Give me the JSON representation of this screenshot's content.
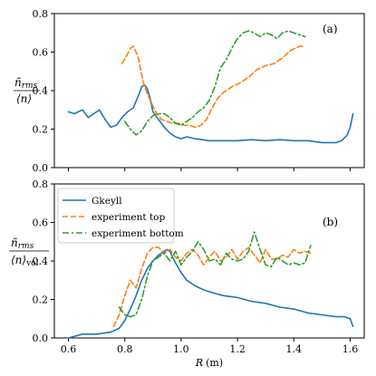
{
  "chart_data": [
    {
      "type": "line",
      "panel_label": "(a)",
      "ylabel_num": "ñ",
      "ylabel_num_sub": "rms",
      "ylabel_den": "⟨n⟩",
      "xlabel": "",
      "xlim": [
        0.55,
        1.65
      ],
      "ylim": [
        0.0,
        0.8
      ],
      "xticks": [
        0.6,
        0.8,
        1.0,
        1.2,
        1.4,
        1.6
      ],
      "yticks": [
        0.0,
        0.2,
        0.4,
        0.6,
        0.8
      ],
      "ytick_labels": [
        "0.0",
        "0.2",
        "0.4",
        "0.6",
        "0.8"
      ],
      "legend": false,
      "series": [
        {
          "color": "#1f77b4",
          "dash": "solid",
          "x": [
            0.6,
            0.62,
            0.65,
            0.67,
            0.69,
            0.71,
            0.73,
            0.75,
            0.77,
            0.79,
            0.81,
            0.83,
            0.85,
            0.86,
            0.87,
            0.88,
            0.89,
            0.9,
            0.92,
            0.94,
            0.96,
            0.98,
            1.0,
            1.02,
            1.05,
            1.1,
            1.15,
            1.2,
            1.25,
            1.3,
            1.35,
            1.4,
            1.45,
            1.5,
            1.55,
            1.57,
            1.59,
            1.6,
            1.61
          ],
          "y": [
            0.29,
            0.28,
            0.3,
            0.26,
            0.28,
            0.3,
            0.25,
            0.21,
            0.22,
            0.26,
            0.29,
            0.31,
            0.38,
            0.42,
            0.43,
            0.41,
            0.36,
            0.29,
            0.25,
            0.21,
            0.18,
            0.16,
            0.15,
            0.16,
            0.15,
            0.14,
            0.14,
            0.14,
            0.145,
            0.14,
            0.145,
            0.14,
            0.14,
            0.13,
            0.13,
            0.14,
            0.17,
            0.21,
            0.28
          ]
        },
        {
          "color": "#ff7f0e",
          "dash": "dashed",
          "x": [
            0.79,
            0.81,
            0.82,
            0.83,
            0.84,
            0.85,
            0.86,
            0.87,
            0.89,
            0.91,
            0.93,
            0.95,
            0.97,
            0.99,
            1.01,
            1.03,
            1.05,
            1.07,
            1.09,
            1.11,
            1.13,
            1.15,
            1.18,
            1.21,
            1.24,
            1.27,
            1.3,
            1.33,
            1.36,
            1.39,
            1.42,
            1.44
          ],
          "y": [
            0.54,
            0.59,
            0.62,
            0.63,
            0.6,
            0.56,
            0.48,
            0.42,
            0.35,
            0.29,
            0.25,
            0.24,
            0.23,
            0.23,
            0.22,
            0.22,
            0.21,
            0.22,
            0.25,
            0.31,
            0.36,
            0.39,
            0.42,
            0.44,
            0.47,
            0.51,
            0.53,
            0.54,
            0.57,
            0.61,
            0.63,
            0.63
          ]
        },
        {
          "color": "#2ca02c",
          "dash": "dashdot",
          "x": [
            0.8,
            0.82,
            0.84,
            0.86,
            0.88,
            0.9,
            0.92,
            0.94,
            0.96,
            0.98,
            1.0,
            1.02,
            1.04,
            1.06,
            1.08,
            1.1,
            1.12,
            1.14,
            1.16,
            1.18,
            1.2,
            1.22,
            1.24,
            1.26,
            1.28,
            1.3,
            1.32,
            1.34,
            1.36,
            1.38,
            1.4,
            1.42,
            1.44
          ],
          "y": [
            0.24,
            0.2,
            0.17,
            0.19,
            0.24,
            0.27,
            0.28,
            0.28,
            0.26,
            0.23,
            0.22,
            0.24,
            0.26,
            0.29,
            0.31,
            0.35,
            0.42,
            0.52,
            0.56,
            0.62,
            0.67,
            0.7,
            0.71,
            0.7,
            0.68,
            0.7,
            0.69,
            0.67,
            0.7,
            0.71,
            0.7,
            0.69,
            0.68
          ]
        }
      ]
    },
    {
      "type": "line",
      "panel_label": "(b)",
      "ylabel_num": "ñ",
      "ylabel_num_sub": "rms",
      "ylabel_den": "⟨n⟩",
      "ylabel_den_sub": "vol",
      "xlabel": "R",
      "xlabel_unit": "(m)",
      "xlim": [
        0.55,
        1.65
      ],
      "ylim": [
        0.0,
        0.8
      ],
      "xticks": [
        0.6,
        0.8,
        1.0,
        1.2,
        1.4,
        1.6
      ],
      "xtick_labels": [
        "0.6",
        "0.8",
        "1.0",
        "1.2",
        "1.4",
        "1.6"
      ],
      "yticks": [
        0.0,
        0.2,
        0.4,
        0.6,
        0.8
      ],
      "ytick_labels": [
        "0.0",
        "0.2",
        "0.4",
        "0.6",
        "0.8"
      ],
      "legend": true,
      "legend_placement": "top-left",
      "series": [
        {
          "name": "Gkeyll",
          "color": "#1f77b4",
          "dash": "solid",
          "x": [
            0.6,
            0.65,
            0.7,
            0.75,
            0.78,
            0.8,
            0.82,
            0.84,
            0.86,
            0.88,
            0.9,
            0.92,
            0.94,
            0.95,
            0.96,
            0.97,
            0.98,
            1.0,
            1.02,
            1.05,
            1.08,
            1.1,
            1.15,
            1.2,
            1.25,
            1.3,
            1.35,
            1.4,
            1.45,
            1.5,
            1.55,
            1.58,
            1.6,
            1.61
          ],
          "y": [
            0.0,
            0.02,
            0.02,
            0.03,
            0.05,
            0.09,
            0.15,
            0.22,
            0.3,
            0.36,
            0.4,
            0.43,
            0.45,
            0.46,
            0.45,
            0.42,
            0.39,
            0.34,
            0.3,
            0.27,
            0.25,
            0.24,
            0.22,
            0.21,
            0.19,
            0.18,
            0.16,
            0.15,
            0.13,
            0.12,
            0.11,
            0.11,
            0.1,
            0.06
          ]
        },
        {
          "name": "experiment top",
          "color": "#ff7f0e",
          "dash": "dashed",
          "x": [
            0.76,
            0.78,
            0.8,
            0.82,
            0.84,
            0.86,
            0.88,
            0.9,
            0.92,
            0.94,
            0.96,
            0.98,
            1.0,
            1.02,
            1.04,
            1.06,
            1.08,
            1.1,
            1.12,
            1.14,
            1.16,
            1.18,
            1.2,
            1.22,
            1.24,
            1.26,
            1.28,
            1.3,
            1.32,
            1.34,
            1.36,
            1.38,
            1.4,
            1.42,
            1.44,
            1.46
          ],
          "y": [
            0.06,
            0.12,
            0.22,
            0.3,
            0.26,
            0.36,
            0.44,
            0.47,
            0.47,
            0.44,
            0.46,
            0.42,
            0.4,
            0.44,
            0.46,
            0.43,
            0.38,
            0.42,
            0.45,
            0.4,
            0.42,
            0.46,
            0.41,
            0.45,
            0.47,
            0.43,
            0.39,
            0.46,
            0.41,
            0.41,
            0.43,
            0.42,
            0.46,
            0.44,
            0.45,
            0.44
          ]
        },
        {
          "name": "experiment bottom",
          "color": "#2ca02c",
          "dash": "dashdot",
          "x": [
            0.78,
            0.8,
            0.82,
            0.84,
            0.86,
            0.88,
            0.9,
            0.92,
            0.94,
            0.96,
            0.98,
            1.0,
            1.02,
            1.04,
            1.06,
            1.08,
            1.1,
            1.12,
            1.14,
            1.16,
            1.18,
            1.2,
            1.22,
            1.24,
            1.26,
            1.28,
            1.3,
            1.32,
            1.34,
            1.36,
            1.38,
            1.4,
            1.42,
            1.44,
            1.46
          ],
          "y": [
            0.16,
            0.12,
            0.11,
            0.12,
            0.2,
            0.32,
            0.4,
            0.42,
            0.44,
            0.4,
            0.45,
            0.38,
            0.42,
            0.45,
            0.5,
            0.46,
            0.4,
            0.41,
            0.38,
            0.44,
            0.41,
            0.4,
            0.41,
            0.45,
            0.55,
            0.46,
            0.38,
            0.37,
            0.42,
            0.4,
            0.38,
            0.39,
            0.38,
            0.39,
            0.48
          ]
        }
      ]
    }
  ]
}
